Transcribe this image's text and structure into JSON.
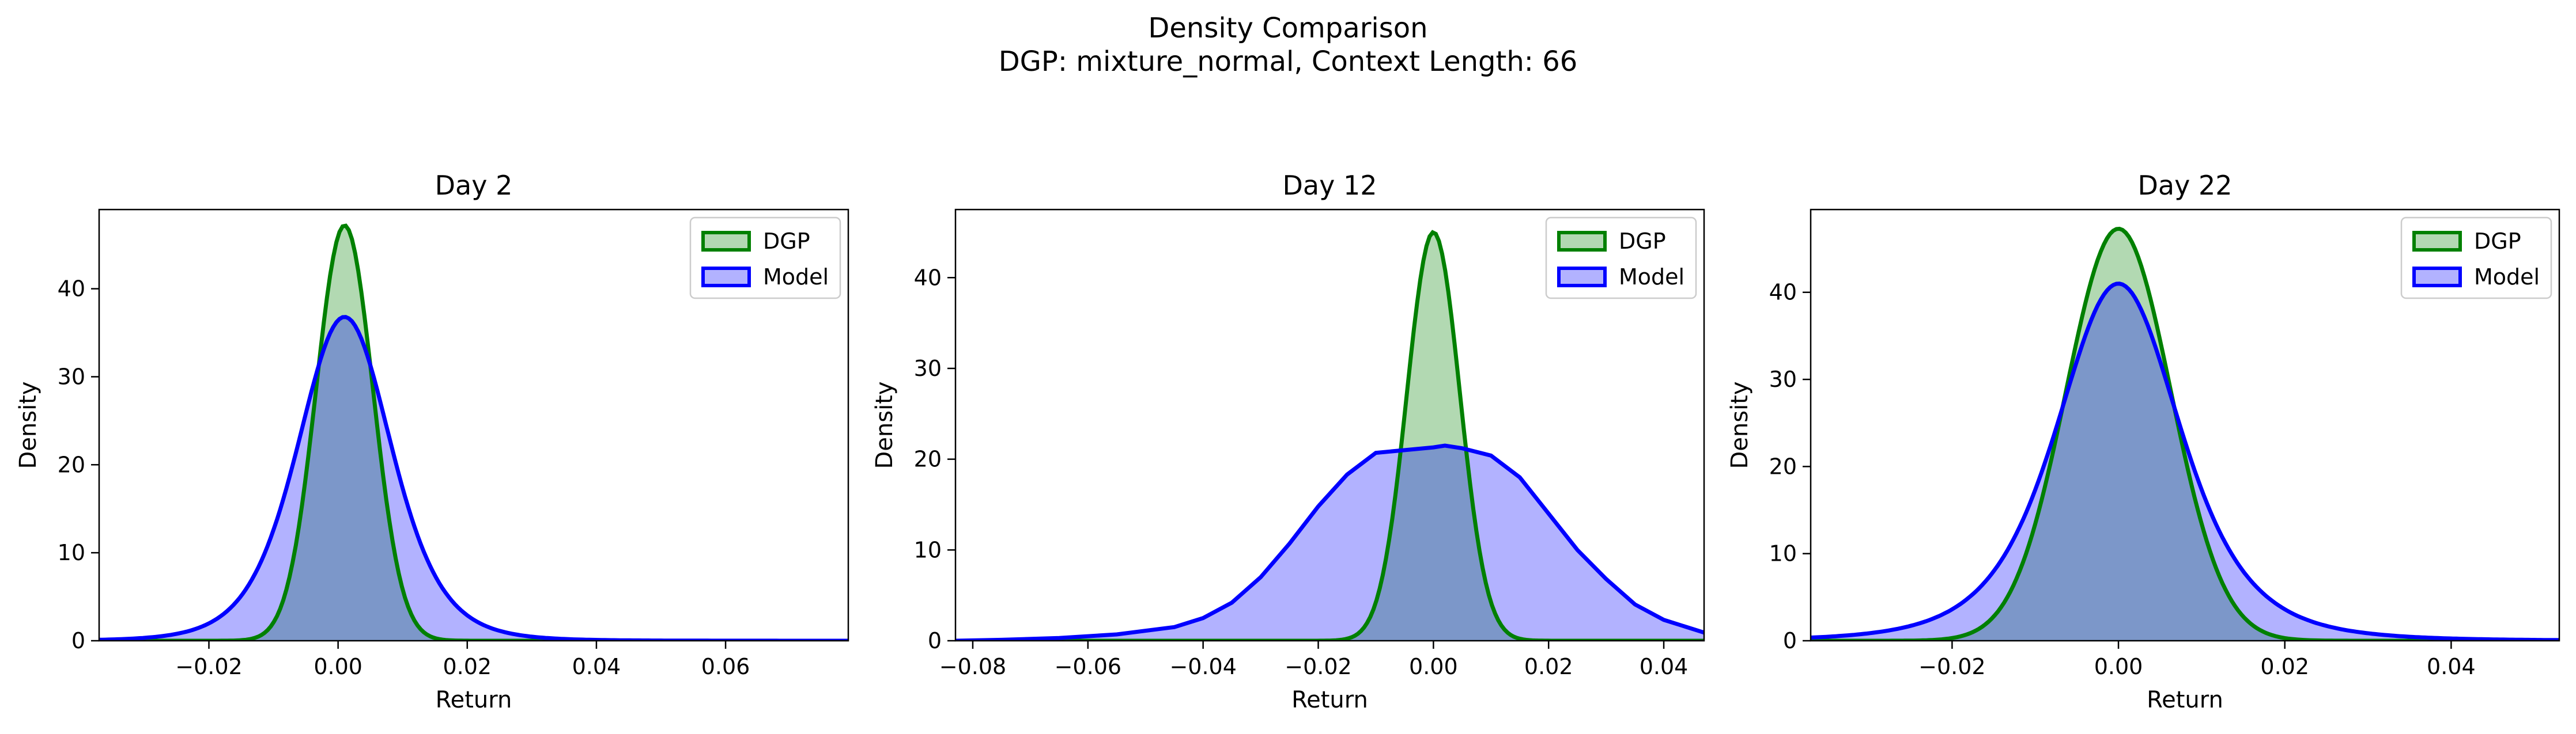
{
  "figure": {
    "title_line1": "Density Comparison",
    "title_line2": "DGP: mixture_normal, Context Length: 66"
  },
  "colors": {
    "dgp_line": "#008000",
    "dgp_fill": "#b2d8b2",
    "model_line": "#0000ff",
    "model_fill": "#b2b2ff",
    "overlap_fill": "#7f9aca"
  },
  "chart_data": [
    {
      "type": "area",
      "title": "Day 2",
      "xlabel": "Return",
      "ylabel": "Density",
      "xlim": [
        -0.037,
        0.079
      ],
      "ylim": [
        0,
        49
      ],
      "xticks": [
        -0.02,
        0.0,
        0.02,
        0.04,
        0.06
      ],
      "xtick_labels": [
        "−0.02",
        "0.00",
        "0.02",
        "0.04",
        "0.06"
      ],
      "yticks": [
        0,
        10,
        20,
        30,
        40
      ],
      "legend": {
        "position": "top-right",
        "entries": [
          "DGP",
          "Model"
        ]
      },
      "series": [
        {
          "name": "DGP",
          "kind": "normal",
          "mean": 0.001,
          "peak": 47.2
        },
        {
          "name": "Model",
          "kind": "normal",
          "mean": 0.001,
          "peak": 36.8
        }
      ]
    },
    {
      "type": "area",
      "title": "Day 12",
      "xlabel": "Return",
      "ylabel": "Density",
      "xlim": [
        -0.083,
        0.047
      ],
      "ylim": [
        0,
        47.5
      ],
      "xticks": [
        -0.08,
        -0.06,
        -0.04,
        -0.02,
        0.0,
        0.02,
        0.04
      ],
      "xtick_labels": [
        "−0.08",
        "−0.06",
        "−0.04",
        "−0.02",
        "0.00",
        "0.02",
        "0.04"
      ],
      "yticks": [
        0,
        10,
        20,
        30,
        40
      ],
      "legend": {
        "position": "top-right",
        "entries": [
          "DGP",
          "Model"
        ]
      },
      "series": [
        {
          "name": "DGP",
          "kind": "normal",
          "mean": 0.0,
          "peak": 45.0
        },
        {
          "name": "Model",
          "kind": "points",
          "x": [
            -0.083,
            -0.075,
            -0.065,
            -0.055,
            -0.045,
            -0.04,
            -0.035,
            -0.03,
            -0.025,
            -0.02,
            -0.015,
            -0.01,
            -0.005,
            0.0,
            0.002,
            0.005,
            0.01,
            0.015,
            0.02,
            0.025,
            0.03,
            0.035,
            0.04,
            0.047
          ],
          "y": [
            0.0,
            0.1,
            0.3,
            0.7,
            1.5,
            2.5,
            4.2,
            7.0,
            10.7,
            14.8,
            18.3,
            20.7,
            21.0,
            21.3,
            21.5,
            21.2,
            20.4,
            18.0,
            14.0,
            10.0,
            6.8,
            4.0,
            2.3,
            0.9
          ]
        }
      ]
    },
    {
      "type": "area",
      "title": "Day 22",
      "xlabel": "Return",
      "ylabel": "Density",
      "xlim": [
        -0.037,
        0.053
      ],
      "ylim": [
        0,
        49.5
      ],
      "xticks": [
        -0.02,
        0.0,
        0.02,
        0.04
      ],
      "xtick_labels": [
        "−0.02",
        "0.00",
        "0.02",
        "0.04"
      ],
      "yticks": [
        0,
        10,
        20,
        30,
        40
      ],
      "legend": {
        "position": "top-right",
        "entries": [
          "DGP",
          "Model"
        ]
      },
      "series": [
        {
          "name": "DGP",
          "kind": "normal",
          "mean": 0.0,
          "peak": 47.3
        },
        {
          "name": "Model",
          "kind": "normal",
          "mean": 0.0,
          "peak": 41.0
        }
      ]
    }
  ]
}
